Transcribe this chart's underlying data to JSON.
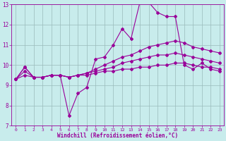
{
  "xlabel": "Windchill (Refroidissement éolien,°C)",
  "bg_color": "#c8ecec",
  "line_color": "#990099",
  "grid_color": "#99bbbb",
  "xlim": [
    -0.5,
    23.5
  ],
  "ylim": [
    7,
    13
  ],
  "xticks": [
    0,
    1,
    2,
    3,
    4,
    5,
    6,
    7,
    8,
    9,
    10,
    11,
    12,
    13,
    14,
    15,
    16,
    17,
    18,
    19,
    20,
    21,
    22,
    23
  ],
  "yticks": [
    7,
    8,
    9,
    10,
    11,
    12,
    13
  ],
  "line1_y": [
    9.3,
    9.9,
    9.4,
    9.4,
    9.5,
    9.5,
    7.5,
    8.6,
    8.9,
    10.3,
    10.4,
    11.0,
    11.8,
    11.3,
    13.1,
    13.1,
    12.6,
    12.4,
    12.4,
    10.0,
    9.8,
    10.1,
    9.8,
    9.7
  ],
  "line2_y": [
    9.3,
    9.9,
    9.4,
    9.4,
    9.5,
    9.5,
    9.4,
    9.5,
    9.6,
    9.8,
    10.0,
    10.2,
    10.4,
    10.5,
    10.7,
    10.9,
    11.0,
    11.1,
    11.2,
    11.1,
    10.9,
    10.8,
    10.7,
    10.6
  ],
  "line3_y": [
    9.3,
    9.5,
    9.4,
    9.4,
    9.5,
    9.5,
    9.4,
    9.5,
    9.5,
    9.6,
    9.7,
    9.7,
    9.8,
    9.8,
    9.9,
    9.9,
    10.0,
    10.0,
    10.1,
    10.1,
    10.0,
    9.9,
    9.9,
    9.8
  ],
  "line4_y": [
    9.3,
    9.7,
    9.4,
    9.4,
    9.5,
    9.5,
    9.4,
    9.5,
    9.6,
    9.7,
    9.8,
    9.9,
    10.1,
    10.2,
    10.3,
    10.4,
    10.5,
    10.5,
    10.6,
    10.5,
    10.4,
    10.3,
    10.2,
    10.1
  ]
}
